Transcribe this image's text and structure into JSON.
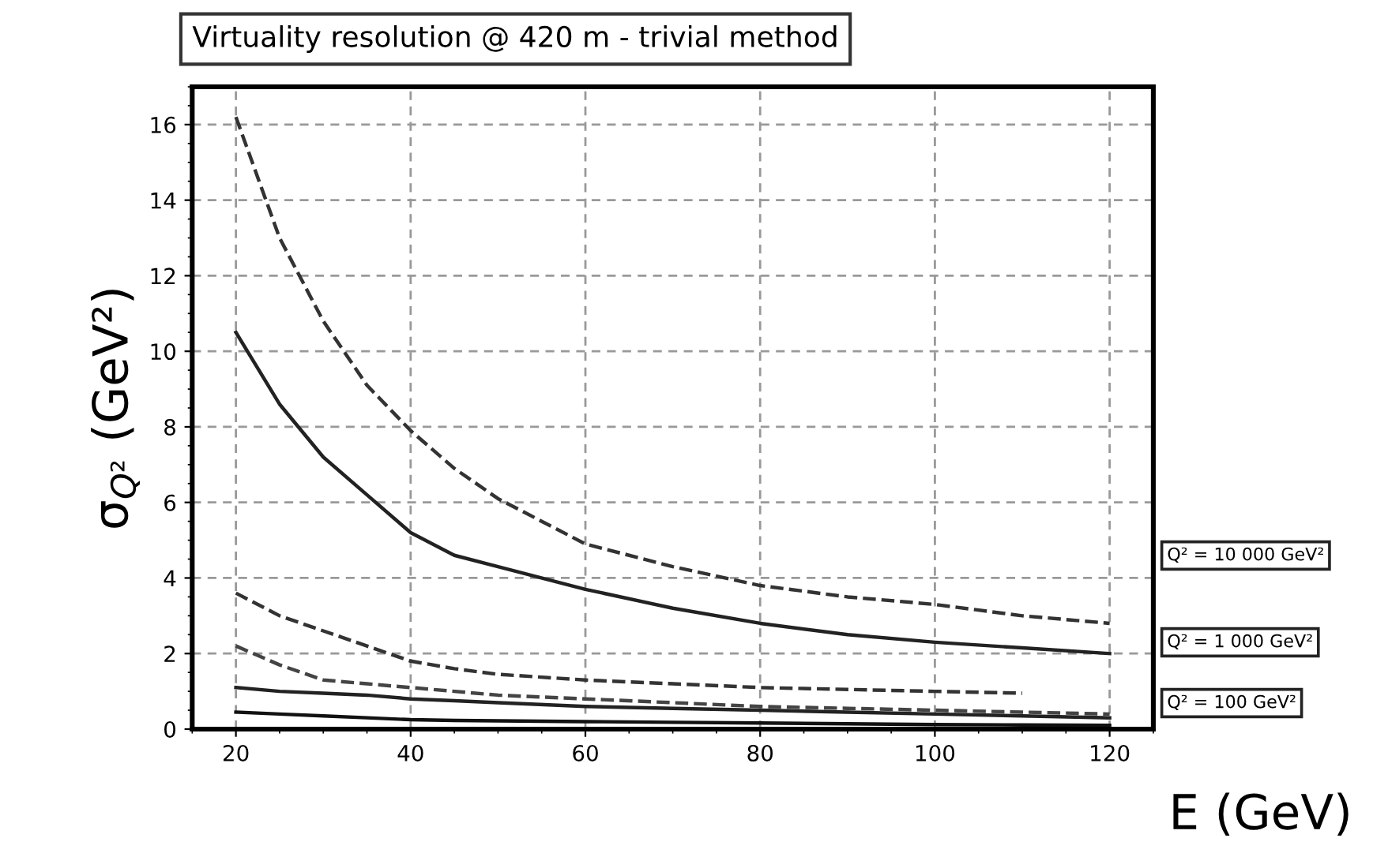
{
  "chart_data": {
    "type": "line",
    "title": "Virtuality resolution @ 420 m - trivial method",
    "xlabel": "E (GeV)",
    "ylabel": "σ$_{Q²}$ (GeV²)",
    "x": [
      20,
      25,
      30,
      35,
      40,
      45,
      50,
      60,
      70,
      80,
      90,
      100,
      110,
      120
    ],
    "series": [
      {
        "color": "#333333",
        "line_style": "dashed",
        "values": [
          16.2,
          13.0,
          10.8,
          9.1,
          7.9,
          6.9,
          6.1,
          4.9,
          4.3,
          3.8,
          3.5,
          3.3,
          3.0,
          2.8
        ]
      },
      {
        "color": "#222222",
        "line_style": "solid",
        "values": [
          10.5,
          8.6,
          7.2,
          6.2,
          5.2,
          4.6,
          4.3,
          3.7,
          3.2,
          2.8,
          2.5,
          2.3,
          2.15,
          2.0
        ]
      },
      {
        "color": "#333333",
        "line_style": "dashed",
        "values": [
          3.6,
          3.0,
          2.6,
          2.2,
          1.8,
          1.6,
          1.45,
          1.3,
          1.2,
          1.1,
          1.05,
          1.0,
          0.95,
          null
        ]
      },
      {
        "color": "#444444",
        "line_style": "dashed",
        "values": [
          2.2,
          1.7,
          1.3,
          1.2,
          1.1,
          1.0,
          0.9,
          0.8,
          0.7,
          0.6,
          0.55,
          0.5,
          0.45,
          0.4
        ]
      },
      {
        "color": "#222222",
        "line_style": "solid",
        "values": [
          1.1,
          1.0,
          0.95,
          0.9,
          0.8,
          0.75,
          0.7,
          0.6,
          0.55,
          0.5,
          0.45,
          0.4,
          0.35,
          0.3
        ]
      },
      {
        "color": "#111111",
        "line_style": "solid",
        "values": [
          0.45,
          0.4,
          0.35,
          0.3,
          0.25,
          0.23,
          0.22,
          0.2,
          0.18,
          0.16,
          0.14,
          0.12,
          0.11,
          0.1
        ]
      }
    ],
    "xlim": [
      15,
      125
    ],
    "ylim": [
      0,
      17
    ],
    "xticks": [
      20,
      40,
      60,
      80,
      100,
      120
    ],
    "yticks": [
      0,
      2,
      4,
      6,
      8,
      10,
      12,
      14,
      16
    ],
    "grid": true,
    "legend": false,
    "marker": "none",
    "annotations": [
      "Q² = 10 000 GeV²",
      "Q² = 1 000 GeV²",
      "Q² = 100 GeV²"
    ]
  }
}
